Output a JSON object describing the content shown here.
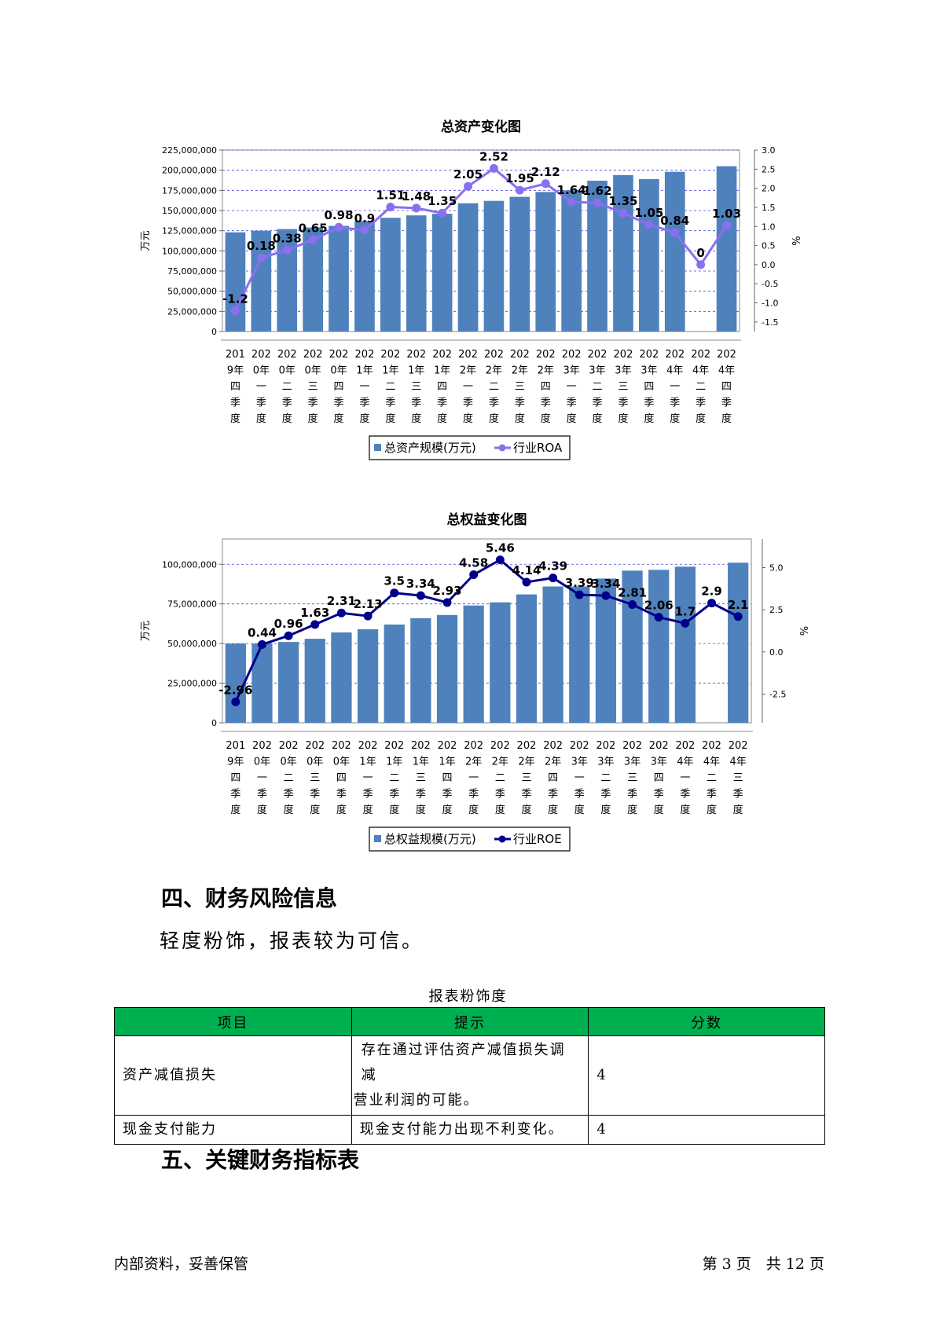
{
  "chart_data": [
    {
      "type": "bar+line",
      "title": "总资产变化图",
      "ylabel_left": "万元",
      "ylabel_right": "%",
      "categories": [
        [
          "201",
          "9年",
          "四",
          "季",
          "度"
        ],
        [
          "202",
          "0年",
          "一",
          "季",
          "度"
        ],
        [
          "202",
          "0年",
          "二",
          "季",
          "度"
        ],
        [
          "202",
          "0年",
          "三",
          "季",
          "度"
        ],
        [
          "202",
          "0年",
          "四",
          "季",
          "度"
        ],
        [
          "202",
          "1年",
          "一",
          "季",
          "度"
        ],
        [
          "202",
          "1年",
          "二",
          "季",
          "度"
        ],
        [
          "202",
          "1年",
          "三",
          "季",
          "度"
        ],
        [
          "202",
          "1年",
          "四",
          "季",
          "度"
        ],
        [
          "202",
          "2年",
          "一",
          "季",
          "度"
        ],
        [
          "202",
          "2年",
          "二",
          "季",
          "度"
        ],
        [
          "202",
          "2年",
          "三",
          "季",
          "度"
        ],
        [
          "202",
          "2年",
          "四",
          "季",
          "度"
        ],
        [
          "202",
          "3年",
          "一",
          "季",
          "度"
        ],
        [
          "202",
          "3年",
          "二",
          "季",
          "度"
        ],
        [
          "202",
          "3年",
          "三",
          "季",
          "度"
        ],
        [
          "202",
          "3年",
          "四",
          "季",
          "度"
        ],
        [
          "202",
          "4年",
          "一",
          "季",
          "度"
        ],
        [
          "202",
          "4年",
          "二",
          "季",
          "度"
        ],
        [
          "202",
          "4年",
          "四",
          "季",
          "度"
        ]
      ],
      "bar_series": {
        "name": "总资产规模(万元)",
        "color": "#4f81bd",
        "values": [
          123000000,
          125000000,
          127000000,
          129000000,
          131000000,
          137000000,
          141000000,
          144000000,
          146000000,
          159000000,
          162000000,
          167000000,
          173000000,
          175000000,
          187000000,
          194000000,
          189000000,
          198000000,
          null,
          205000000
        ]
      },
      "line_series": {
        "name": "行业ROA",
        "color": "#8b6ff0",
        "values": [
          -1.2,
          0.18,
          0.38,
          0.65,
          0.98,
          0.9,
          1.51,
          1.48,
          1.35,
          2.05,
          2.52,
          1.95,
          2.12,
          1.64,
          1.62,
          1.35,
          1.05,
          0.84,
          0,
          1.03
        ],
        "labels": [
          "-1.2",
          "0.18",
          "0.38",
          "0.65",
          "0.98",
          "0.9",
          "1.51",
          "1.48",
          "1.35",
          "2.05",
          "2.52",
          "1.95",
          "2.12",
          "1.64",
          "1.62",
          "1.35",
          "1.05",
          "0.84",
          "0",
          "1.03"
        ]
      },
      "left_axis": {
        "min": 0,
        "max": 225000000,
        "ticks": [
          0,
          25000000,
          50000000,
          75000000,
          100000000,
          125000000,
          150000000,
          175000000,
          200000000,
          225000000
        ],
        "tick_labels": [
          "0",
          "25,000,000",
          "50,000,000",
          "75,000,000",
          "100,000,000",
          "125,000,000",
          "150,000,000",
          "175,000,000",
          "200,000,000",
          "225,000,000"
        ]
      },
      "right_axis": {
        "min": -1.75,
        "max": 3.0,
        "ticks": [
          3.0,
          2.5,
          2.0,
          1.5,
          1.0,
          0.5,
          0.0,
          -0.5,
          -1.0,
          -1.5
        ],
        "tick_labels": [
          "3.0",
          "2.5",
          "2.0",
          "1.5",
          "1.0",
          "0.5",
          "0.0",
          "-0.5",
          "-1.0",
          "-1.5"
        ]
      },
      "grid": true,
      "legend": "bottom"
    },
    {
      "type": "bar+line",
      "title": "总权益变化图",
      "ylabel_left": "万元",
      "ylabel_right": "%",
      "categories": [
        [
          "201",
          "9年",
          "四",
          "季",
          "度"
        ],
        [
          "202",
          "0年",
          "一",
          "季",
          "度"
        ],
        [
          "202",
          "0年",
          "二",
          "季",
          "度"
        ],
        [
          "202",
          "0年",
          "三",
          "季",
          "度"
        ],
        [
          "202",
          "0年",
          "四",
          "季",
          "度"
        ],
        [
          "202",
          "1年",
          "一",
          "季",
          "度"
        ],
        [
          "202",
          "1年",
          "二",
          "季",
          "度"
        ],
        [
          "202",
          "1年",
          "三",
          "季",
          "度"
        ],
        [
          "202",
          "1年",
          "四",
          "季",
          "度"
        ],
        [
          "202",
          "2年",
          "一",
          "季",
          "度"
        ],
        [
          "202",
          "2年",
          "二",
          "季",
          "度"
        ],
        [
          "202",
          "2年",
          "三",
          "季",
          "度"
        ],
        [
          "202",
          "2年",
          "四",
          "季",
          "度"
        ],
        [
          "202",
          "3年",
          "一",
          "季",
          "度"
        ],
        [
          "202",
          "3年",
          "二",
          "季",
          "度"
        ],
        [
          "202",
          "3年",
          "三",
          "季",
          "度"
        ],
        [
          "202",
          "3年",
          "四",
          "季",
          "度"
        ],
        [
          "202",
          "4年",
          "一",
          "季",
          "度"
        ],
        [
          "202",
          "4年",
          "二",
          "季",
          "度"
        ],
        [
          "202",
          "4年",
          "三",
          "季",
          "度"
        ]
      ],
      "bar_series": {
        "name": "总权益规模(万元)",
        "color": "#4f81bd",
        "values": [
          50000000,
          50000000,
          51000000,
          53000000,
          57000000,
          59000000,
          62000000,
          66000000,
          68000000,
          74000000,
          76000000,
          81000000,
          86000000,
          86000000,
          91000000,
          96000000,
          96500000,
          98500000,
          null,
          101000000
        ]
      },
      "line_series": {
        "name": "行业ROE",
        "color": "#00008b",
        "values": [
          -2.96,
          0.44,
          0.96,
          1.63,
          2.31,
          2.13,
          3.5,
          3.34,
          2.93,
          4.58,
          5.46,
          4.14,
          4.39,
          3.39,
          3.34,
          2.81,
          2.06,
          1.7,
          2.9,
          2.1
        ],
        "labels": [
          "-2.96",
          "0.44",
          "0.96",
          "1.63",
          "2.31",
          "2.13",
          "3.5",
          "3.34",
          "2.93",
          "4.58",
          "5.46",
          "4.14",
          "4.39",
          "3.39",
          "3.34",
          "2.81",
          "2.06",
          "1.7",
          "2.9",
          "2.1"
        ]
      },
      "left_axis": {
        "min": 0,
        "max": 116000000,
        "ticks": [
          0,
          25000000,
          50000000,
          75000000,
          100000000
        ],
        "tick_labels": [
          "0",
          "25,000,000",
          "50,000,000",
          "75,000,000",
          "100,000,000"
        ]
      },
      "right_axis": {
        "min": -4.2,
        "max": 6.7,
        "ticks": [
          5.0,
          2.5,
          0.0,
          -2.5
        ],
        "tick_labels": [
          "5.0",
          "2.5",
          "0.0",
          "-2.5"
        ]
      },
      "grid": true,
      "legend": "bottom"
    }
  ],
  "sections": {
    "risk_heading": "四、财务风险信息",
    "risk_text": "轻度粉饰，报表较为可信。",
    "indicator_heading": "五、关键财务指标表"
  },
  "table": {
    "caption": "报表粉饰度",
    "headers": [
      "项目",
      "提示",
      "分数"
    ],
    "header_color": "#00b050",
    "rows": [
      {
        "item": "资产减值损失",
        "hint_line1": "存在通过评估资产减值损失调减",
        "hint_line2": "营业利润的可能。",
        "score": "4"
      },
      {
        "item": "现金支付能力",
        "hint_line1": "现金支付能力出现不利变化。",
        "hint_line2": "",
        "score": "4"
      }
    ]
  },
  "footer": {
    "left": "内部资料，妥善保管",
    "right": "第 3 页　共 12 页"
  }
}
